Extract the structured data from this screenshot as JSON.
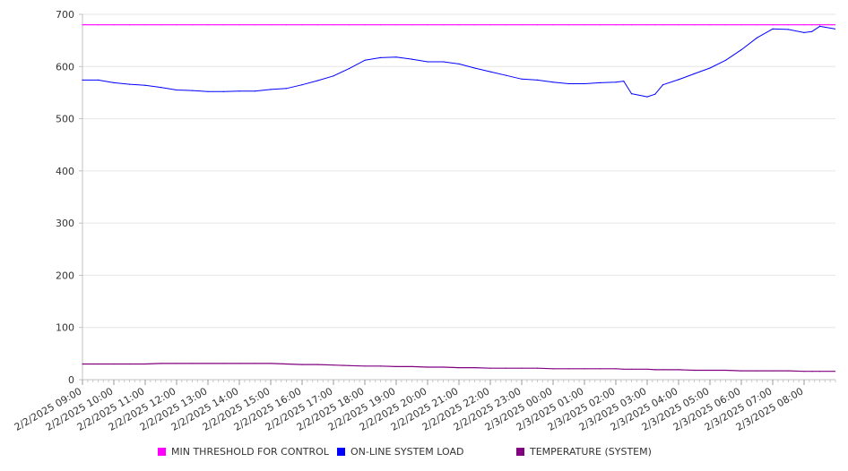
{
  "chart_data": {
    "type": "line",
    "title": "",
    "xlabel": "",
    "ylabel": "",
    "ylim": [
      0,
      700
    ],
    "yticks": [
      0,
      100,
      200,
      300,
      400,
      500,
      600,
      700
    ],
    "grid": "horizontal",
    "legend_position": "bottom",
    "x_tick_labels": [
      "2/2/2025 09:00",
      "2/2/2025 10:00",
      "2/2/2025 11:00",
      "2/2/2025 12:00",
      "2/2/2025 13:00",
      "2/2/2025 14:00",
      "2/2/2025 15:00",
      "2/2/2025 16:00",
      "2/2/2025 17:00",
      "2/2/2025 18:00",
      "2/2/2025 19:00",
      "2/2/2025 20:00",
      "2/2/2025 21:00",
      "2/2/2025 22:00",
      "2/2/2025 23:00",
      "2/3/2025 00:00",
      "2/3/2025 01:00",
      "2/3/2025 02:00",
      "2/3/2025 03:00",
      "2/3/2025 04:00",
      "2/3/2025 05:00",
      "2/3/2025 06:00",
      "2/3/2025 07:00",
      "2/3/2025 08:00"
    ],
    "x": [
      "2/2/2025 09:00",
      "2/2/2025 09:30",
      "2/2/2025 10:00",
      "2/2/2025 10:30",
      "2/2/2025 11:00",
      "2/2/2025 11:30",
      "2/2/2025 12:00",
      "2/2/2025 12:30",
      "2/2/2025 13:00",
      "2/2/2025 13:30",
      "2/2/2025 14:00",
      "2/2/2025 14:30",
      "2/2/2025 15:00",
      "2/2/2025 15:30",
      "2/2/2025 16:00",
      "2/2/2025 16:30",
      "2/2/2025 17:00",
      "2/2/2025 17:30",
      "2/2/2025 18:00",
      "2/2/2025 18:30",
      "2/2/2025 19:00",
      "2/2/2025 19:30",
      "2/2/2025 20:00",
      "2/2/2025 20:30",
      "2/2/2025 21:00",
      "2/2/2025 21:30",
      "2/2/2025 22:00",
      "2/2/2025 22:30",
      "2/2/2025 23:00",
      "2/2/2025 23:30",
      "2/3/2025 00:00",
      "2/3/2025 00:30",
      "2/3/2025 01:00",
      "2/3/2025 01:30",
      "2/3/2025 02:00",
      "2/3/2025 02:15",
      "2/3/2025 02:30",
      "2/3/2025 03:00",
      "2/3/2025 03:15",
      "2/3/2025 03:30",
      "2/3/2025 04:00",
      "2/3/2025 04:30",
      "2/3/2025 05:00",
      "2/3/2025 05:30",
      "2/3/2025 06:00",
      "2/3/2025 06:30",
      "2/3/2025 07:00",
      "2/3/2025 07:30",
      "2/3/2025 08:00",
      "2/3/2025 08:15",
      "2/3/2025 08:30",
      "2/3/2025 08:59"
    ],
    "series": [
      {
        "name": "MIN THRESHOLD FOR CONTROL",
        "color": "#ff00ff",
        "values": [
          680,
          680,
          680,
          680,
          680,
          680,
          680,
          680,
          680,
          680,
          680,
          680,
          680,
          680,
          680,
          680,
          680,
          680,
          680,
          680,
          680,
          680,
          680,
          680,
          680,
          680,
          680,
          680,
          680,
          680,
          680,
          680,
          680,
          680,
          680,
          680,
          680,
          680,
          680,
          680,
          680,
          680,
          680,
          680,
          680,
          680,
          680,
          680,
          680,
          680,
          680,
          680
        ]
      },
      {
        "name": "ON-LINE SYSTEM LOAD",
        "color": "#0000ff",
        "values": [
          574,
          574,
          569,
          566,
          564,
          560,
          555,
          554,
          552,
          552,
          553,
          553,
          556,
          558,
          565,
          573,
          582,
          596,
          612,
          617,
          618,
          614,
          609,
          609,
          605,
          597,
          590,
          583,
          576,
          574,
          570,
          567,
          567,
          569,
          570,
          572,
          548,
          542,
          547,
          565,
          575,
          586,
          597,
          612,
          632,
          655,
          672,
          671,
          665,
          667,
          677,
          672
        ]
      },
      {
        "name": "TEMPERATURE (SYSTEM)",
        "color": "#800080",
        "values": [
          30,
          30,
          30,
          30,
          30,
          31,
          31,
          31,
          31,
          31,
          31,
          31,
          31,
          30,
          29,
          29,
          28,
          27,
          26,
          26,
          25,
          25,
          24,
          24,
          23,
          23,
          22,
          22,
          22,
          22,
          21,
          21,
          21,
          21,
          21,
          20,
          20,
          20,
          19,
          19,
          19,
          18,
          18,
          18,
          17,
          17,
          17,
          17,
          16,
          16,
          16,
          16
        ]
      }
    ]
  }
}
